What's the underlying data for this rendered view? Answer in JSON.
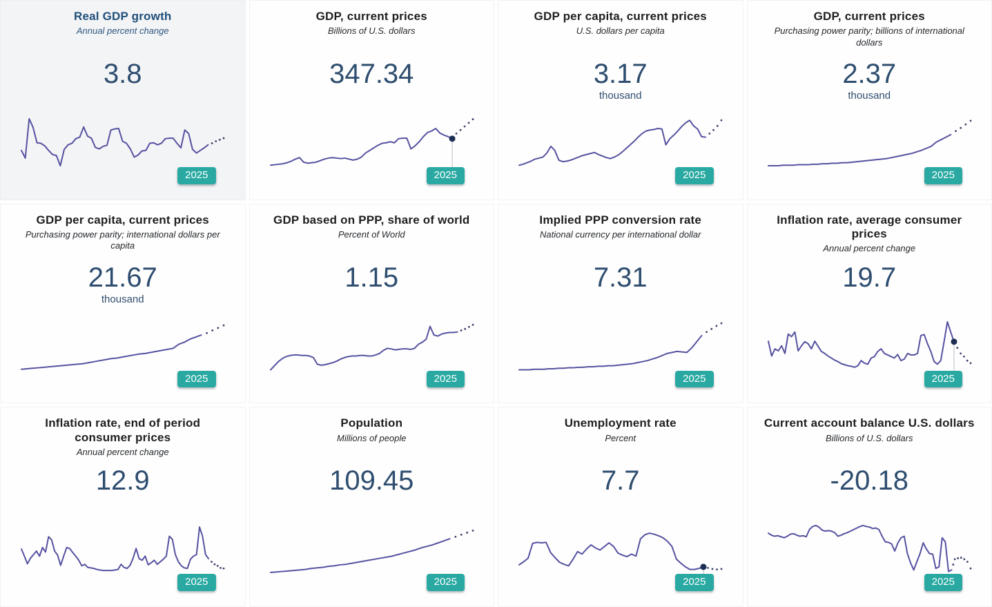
{
  "colors": {
    "accent_teal": "#29a9a2",
    "line_purple": "#5551a0",
    "forecast_dot": "#3c4168",
    "marker_navy": "#1c2f52",
    "leader_gray": "#b9bdc6",
    "value_navy": "#2e4d6f",
    "title_dark": "#1d1e20",
    "active_title_navy": "#1f4e79",
    "active_tile_bg": "#f3f4f6"
  },
  "chart_data": [
    {
      "type": "line",
      "title": "Real GDP growth",
      "subtitle": "Annual percent change",
      "value": "3.8",
      "value_suffix": "",
      "year_badge": "2025",
      "highlighted": true,
      "end_marker": false,
      "series": [
        34,
        19,
        96,
        79,
        49,
        48,
        43,
        34,
        26,
        24,
        4,
        36,
        45,
        48,
        57,
        60,
        80,
        62,
        58,
        40,
        37,
        42,
        44,
        74,
        76,
        77,
        52,
        48,
        37,
        21,
        25,
        33,
        34,
        48,
        49,
        45,
        48,
        57,
        58,
        58,
        48,
        39,
        74,
        67,
        36,
        29,
        34,
        39,
        45
      ],
      "forecast": [
        48,
        52,
        55,
        58
      ]
    },
    {
      "type": "line",
      "title": "GDP, current prices",
      "subtitle": "Billions of U.S. dollars",
      "value": "347.34",
      "value_suffix": "",
      "year_badge": "2025",
      "highlighted": false,
      "end_marker": true,
      "series": [
        5,
        6,
        7,
        8,
        10,
        13,
        17,
        20,
        11,
        9,
        10,
        11,
        14,
        17,
        19,
        20,
        19,
        18,
        19,
        17,
        15,
        17,
        21,
        29,
        34,
        39,
        44,
        48,
        49,
        51,
        49,
        57,
        58,
        58,
        37,
        43,
        51,
        61,
        69,
        72,
        77,
        68,
        64,
        61,
        57
      ],
      "forecast": [
        67,
        74,
        81,
        88,
        95
      ]
    },
    {
      "type": "line",
      "title": "GDP per capita, current prices",
      "subtitle": "U.S. dollars per capita",
      "value": "3.17",
      "value_suffix": "thousand",
      "year_badge": "2025",
      "highlighted": false,
      "end_marker": false,
      "series": [
        5,
        7,
        10,
        13,
        17,
        19,
        21,
        29,
        42,
        34,
        15,
        12,
        13,
        15,
        18,
        21,
        24,
        26,
        28,
        30,
        26,
        23,
        20,
        18,
        21,
        25,
        31,
        38,
        45,
        52,
        60,
        67,
        72,
        74,
        75,
        77,
        76,
        45,
        57,
        64,
        72,
        81,
        88,
        93,
        82,
        76,
        61,
        60
      ],
      "forecast": [
        67,
        74,
        82,
        93
      ]
    },
    {
      "type": "line",
      "title": "GDP, current prices",
      "subtitle": "Purchasing power parity; billions of international dollars",
      "value": "2.37",
      "value_suffix": "thousand",
      "year_badge": "2025",
      "highlighted": false,
      "end_marker": false,
      "series": [
        4,
        4,
        4,
        5,
        5,
        5,
        6,
        6,
        6,
        7,
        7,
        8,
        8,
        9,
        9,
        10,
        10,
        11,
        12,
        13,
        14,
        15,
        16,
        17,
        18,
        20,
        22,
        24,
        26,
        28,
        31,
        34,
        38,
        42,
        50,
        55,
        60,
        65
      ],
      "forecast": [
        72,
        78,
        85,
        92
      ]
    },
    {
      "type": "line",
      "title": "GDP per capita, current prices",
      "subtitle": "Purchasing power parity; international dollars per capita",
      "value": "21.67",
      "value_suffix": "thousand",
      "year_badge": "2025",
      "highlighted": false,
      "end_marker": false,
      "series": [
        3,
        4,
        5,
        6,
        7,
        8,
        9,
        10,
        11,
        12,
        13,
        14,
        16,
        18,
        20,
        22,
        24,
        25,
        27,
        29,
        31,
        33,
        34,
        36,
        38,
        40,
        42,
        44,
        52,
        56,
        62,
        66,
        70
      ],
      "forecast": [
        74,
        79,
        84,
        89
      ]
    },
    {
      "type": "line",
      "title": "GDP based on PPP, share of world",
      "subtitle": "Percent of World",
      "value": "1.15",
      "value_suffix": "",
      "year_badge": "2025",
      "highlighted": false,
      "end_marker": false,
      "series": [
        2,
        10,
        18,
        24,
        28,
        30,
        31,
        31,
        30,
        30,
        29,
        26,
        13,
        11,
        12,
        14,
        16,
        19,
        23,
        26,
        28,
        29,
        29,
        30,
        30,
        29,
        29,
        31,
        34,
        40,
        44,
        43,
        41,
        42,
        43,
        43,
        42,
        44,
        52,
        56,
        62,
        87,
        70,
        68,
        72,
        74,
        75,
        75,
        76
      ],
      "forecast": [
        79,
        82,
        86,
        90
      ]
    },
    {
      "type": "line",
      "title": "Implied PPP conversion rate",
      "subtitle": "National currency per international dollar",
      "value": "7.31",
      "value_suffix": "",
      "year_badge": "2025",
      "highlighted": false,
      "end_marker": false,
      "series": [
        2,
        2,
        2,
        3,
        3,
        3,
        4,
        4,
        5,
        5,
        6,
        6,
        7,
        7,
        8,
        8,
        9,
        9,
        10,
        10,
        11,
        12,
        13,
        14,
        16,
        18,
        20,
        23,
        26,
        30,
        34,
        36,
        38,
        37,
        36,
        45,
        57,
        69
      ],
      "forecast": [
        76,
        82,
        88,
        93
      ]
    },
    {
      "type": "line",
      "title": "Inflation rate, average consumer prices",
      "subtitle": "Annual percent change",
      "value": "19.7",
      "value_suffix": "",
      "year_badge": "2025",
      "highlighted": false,
      "end_marker": true,
      "series": [
        58,
        29,
        43,
        39,
        49,
        34,
        72,
        67,
        76,
        39,
        49,
        57,
        53,
        43,
        58,
        48,
        38,
        34,
        29,
        25,
        21,
        18,
        14,
        12,
        10,
        9,
        7,
        10,
        20,
        15,
        13,
        25,
        28,
        38,
        43,
        34,
        31,
        28,
        25,
        32,
        20,
        23,
        34,
        31,
        31,
        34,
        69,
        71,
        53,
        38,
        18,
        13,
        20,
        57,
        96,
        76,
        57
      ],
      "forecast": [
        45,
        34,
        28,
        20,
        15
      ]
    },
    {
      "type": "line",
      "title": "Inflation rate, end of period consumer prices",
      "subtitle": "Annual percent change",
      "value": "12.9",
      "value_suffix": "",
      "year_badge": "2025",
      "highlighted": false,
      "end_marker": false,
      "series": [
        50,
        36,
        21,
        32,
        39,
        46,
        36,
        53,
        44,
        74,
        68,
        46,
        38,
        18,
        36,
        53,
        51,
        43,
        36,
        28,
        17,
        20,
        14,
        13,
        12,
        10,
        9,
        8,
        8,
        8,
        8,
        9,
        10,
        20,
        14,
        12,
        18,
        32,
        51,
        31,
        28,
        36,
        19,
        23,
        28,
        20,
        25,
        30,
        36,
        75,
        69,
        39,
        25,
        17,
        13,
        12,
        30,
        36,
        39,
        93,
        75,
        39,
        31
      ],
      "forecast": [
        25,
        20,
        17,
        13,
        12
      ]
    },
    {
      "type": "line",
      "title": "Population",
      "subtitle": "Millions of people",
      "value": "109.45",
      "value_suffix": "",
      "year_badge": "2025",
      "highlighted": false,
      "end_marker": false,
      "series": [
        4,
        5,
        6,
        7,
        8,
        9,
        10,
        12,
        13,
        14,
        16,
        17,
        19,
        20,
        22,
        24,
        26,
        28,
        30,
        32,
        34,
        36,
        39,
        42,
        45,
        48,
        52,
        55,
        58,
        62,
        66,
        70
      ],
      "forecast": [
        74,
        78,
        82,
        86
      ]
    },
    {
      "type": "line",
      "title": "Unemployment rate",
      "subtitle": "Percent",
      "value": "7.7",
      "value_suffix": "",
      "year_badge": "2025",
      "highlighted": false,
      "end_marker": true,
      "series": [
        19,
        25,
        32,
        61,
        63,
        62,
        63,
        43,
        33,
        24,
        20,
        17,
        30,
        45,
        40,
        50,
        58,
        52,
        48,
        55,
        62,
        55,
        42,
        38,
        35,
        40,
        36,
        70,
        78,
        81,
        79,
        76,
        72,
        65,
        55,
        30,
        22,
        15,
        10,
        10,
        12,
        15
      ],
      "forecast": [
        13,
        11,
        10,
        11
      ]
    },
    {
      "type": "line",
      "title": "Current account balance U.S. dollars",
      "subtitle": "Billions of U.S. dollars",
      "value": "-20.18",
      "value_suffix": "",
      "year_badge": "2025",
      "highlighted": false,
      "end_marker": false,
      "series": [
        81,
        77,
        75,
        76,
        74,
        72,
        75,
        79,
        80,
        77,
        75,
        76,
        74,
        88,
        94,
        96,
        93,
        87,
        85,
        86,
        85,
        82,
        75,
        77,
        80,
        82,
        85,
        88,
        91,
        94,
        96,
        94,
        93,
        90,
        91,
        88,
        75,
        64,
        63,
        60,
        46,
        62,
        72,
        75,
        41,
        23,
        9,
        25,
        41,
        62,
        50,
        41,
        40,
        12,
        15,
        72,
        64,
        6,
        9
      ],
      "forecast": [
        30,
        32,
        33,
        30,
        25,
        12
      ]
    }
  ]
}
